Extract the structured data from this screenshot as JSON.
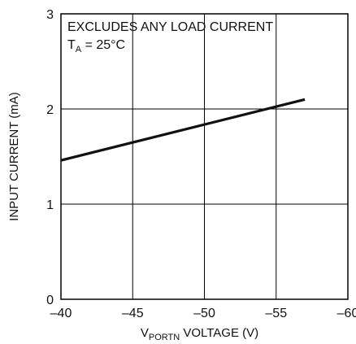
{
  "chart_data": {
    "type": "line",
    "title": "",
    "xlabel": {
      "main": "V",
      "sub": "PORTN",
      "rest": " VOLTAGE (V)"
    },
    "ylabel": "INPUT CURRENT (mA)",
    "xlim": [
      -40,
      -60
    ],
    "ylim": [
      0,
      3
    ],
    "x_ticks": [
      "–40",
      "–45",
      "–50",
      "–55",
      "–60"
    ],
    "y_ticks": [
      "0",
      "1",
      "2",
      "3"
    ],
    "x_tick_values": [
      -40,
      -45,
      -50,
      -55,
      -60
    ],
    "y_tick_values": [
      0,
      1,
      2,
      3
    ],
    "grid": true,
    "series": [
      {
        "x": [
          -40,
          -57
        ],
        "y": [
          1.46,
          2.1
        ]
      }
    ],
    "annotations": {
      "line1": "EXCLUDES ANY LOAD CURRENT",
      "line2": {
        "main": "T",
        "sub": "A",
        "rest": " = 25°C"
      }
    }
  }
}
